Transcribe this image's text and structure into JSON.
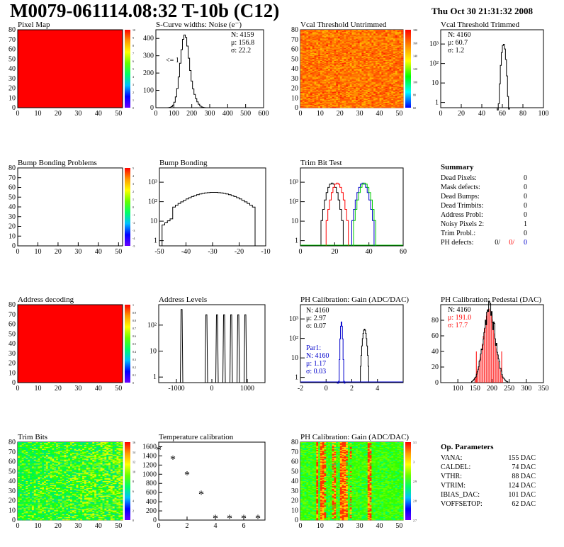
{
  "header": {
    "title": "M0079-061114.08:32 T-10b (C12)",
    "date": "Thu Oct 30 21:31:32 2008"
  },
  "colors": {
    "red": "#ff0000",
    "blue": "#0000cc",
    "green": "#00cc00"
  },
  "chart_data": [
    {
      "id": "pixel_map",
      "type": "heatmap",
      "title": "Pixel Map",
      "xlim": [
        0,
        52
      ],
      "ylim": [
        0,
        80
      ],
      "xticks": [
        "0",
        "10",
        "20",
        "30",
        "40",
        "50"
      ],
      "yticks": [
        "0",
        "10",
        "20",
        "30",
        "40",
        "50",
        "60",
        "70",
        "80"
      ],
      "zticks": [
        "0",
        "1",
        "2",
        "3",
        "4",
        "5",
        "6",
        "7",
        "8",
        "9",
        "10"
      ],
      "fill": "uniform red (maximum)"
    },
    {
      "id": "scurve",
      "type": "histogram",
      "title": "S-Curve widths: Noise (e⁻)",
      "xlim": [
        0,
        600
      ],
      "ylim": [
        0,
        450
      ],
      "xticks": [
        "0",
        "100",
        "200",
        "300",
        "400",
        "500",
        "600"
      ],
      "yticks": [
        "0",
        "100",
        "200",
        "300",
        "400"
      ],
      "stats": {
        "n": "N: 4159",
        "mu": "μ: 156.8",
        "sigma": "σ: 22.2"
      },
      "annotation": "<= 1",
      "peak_x": 156.8,
      "peak_y": 420
    },
    {
      "id": "vcal_untrimmed",
      "type": "heatmap",
      "title": "Vcal Threshold Untrimmed",
      "xlim": [
        0,
        52
      ],
      "ylim": [
        0,
        80
      ],
      "xticks": [
        "0",
        "10",
        "20",
        "30",
        "40",
        "50"
      ],
      "yticks": [
        "0",
        "10",
        "20",
        "30",
        "40",
        "50",
        "60",
        "70",
        "80"
      ],
      "zticks": [
        "60",
        "80",
        "100",
        "120",
        "140",
        "160",
        "180"
      ],
      "fill": "noisy orange/red"
    },
    {
      "id": "vcal_trimmed",
      "type": "histogram",
      "title": "Vcal Threshold Trimmed",
      "ylog": true,
      "xlim": [
        0,
        100
      ],
      "xticks": [
        "0",
        "20",
        "40",
        "60",
        "80",
        "100"
      ],
      "yticks": [
        "1",
        "10",
        "10²",
        "10³"
      ],
      "stats": {
        "n": "N: 4160",
        "mu": "μ: 60.7",
        "sigma": "σ:  1.2"
      },
      "peak_x": 60.7,
      "peak_y": 1000
    },
    {
      "id": "bump_problems",
      "type": "heatmap",
      "title": "Bump Bonding Problems",
      "xlim": [
        0,
        52
      ],
      "ylim": [
        0,
        80
      ],
      "xticks": [
        "0",
        "10",
        "20",
        "30",
        "40",
        "50"
      ],
      "yticks": [
        "0",
        "10",
        "20",
        "30",
        "40",
        "50",
        "60",
        "70",
        "80"
      ],
      "zticks": [
        "-5",
        "-4",
        "-3",
        "-2",
        "-1",
        "0",
        "1",
        "2",
        "3",
        "4",
        "5"
      ],
      "fill": "empty"
    },
    {
      "id": "bump_bonding",
      "type": "histogram",
      "title": "Bump Bonding",
      "ylog": true,
      "xlim": [
        -50,
        -10
      ],
      "xticks": [
        "-50",
        "-40",
        "-30",
        "-20",
        "-10"
      ],
      "yticks": [
        "1",
        "10",
        "10²",
        "10³"
      ],
      "peak_x": -30,
      "peak_y": 300
    },
    {
      "id": "trim_bit_test",
      "type": "histogram",
      "title": "Trim Bit Test",
      "ylog": true,
      "xlim": [
        0,
        60
      ],
      "xticks": [
        "0",
        "20",
        "40",
        "60"
      ],
      "yticks": [
        "1",
        "10",
        "10²",
        "10³"
      ],
      "series": [
        {
          "color": "black",
          "peak_x": 18
        },
        {
          "color": "red",
          "peak_x": 21
        },
        {
          "color": "blue",
          "peak_x": 36
        },
        {
          "color": "green",
          "peak_x": 37
        }
      ]
    },
    {
      "id": "summary",
      "type": "table",
      "title": "Summary",
      "rows": [
        {
          "label": "Dead Pixels:",
          "value": "0"
        },
        {
          "label": "Mask defects:",
          "value": "0"
        },
        {
          "label": "Dead Bumps:",
          "value": "0"
        },
        {
          "label": "Dead Trimbits:",
          "value": "0"
        },
        {
          "label": "Address Probl:",
          "value": "0"
        },
        {
          "label": "Noisy Pixels 2:",
          "value": "1"
        },
        {
          "label": "Trim Probl.:",
          "value": "0"
        }
      ],
      "ph_defects": {
        "label": "PH defects:",
        "v1": "0/",
        "v2": "0/",
        "v3": "0"
      }
    },
    {
      "id": "address_decoding",
      "type": "heatmap",
      "title": "Address decoding",
      "xlim": [
        0,
        52
      ],
      "ylim": [
        0,
        80
      ],
      "xticks": [
        "0",
        "10",
        "20",
        "30",
        "40",
        "50"
      ],
      "yticks": [
        "0",
        "10",
        "20",
        "30",
        "40",
        "50",
        "60",
        "70",
        "80"
      ],
      "zticks": [
        "0",
        "0.1",
        "0.2",
        "0.3",
        "0.4",
        "0.5",
        "0.6",
        "0.7",
        "0.8",
        "0.9",
        "1"
      ],
      "fill": "uniform red (maximum)"
    },
    {
      "id": "address_levels",
      "type": "histogram",
      "title": "Address Levels",
      "ylog": true,
      "xlim": [
        -1500,
        1500
      ],
      "xticks": [
        "-1000",
        "0",
        "1000"
      ],
      "yticks": [
        "1",
        "10",
        "10²"
      ],
      "peaks_x": [
        -850,
        -150,
        150,
        350,
        550,
        750,
        950
      ]
    },
    {
      "id": "ph_gain",
      "type": "histogram",
      "title": "PH Calibration: Gain (ADC/DAC)",
      "ylog": true,
      "xlim": [
        -2,
        6
      ],
      "xticks": [
        "-2",
        "0",
        "2",
        "4"
      ],
      "yticks": [
        "1",
        "10",
        "10²",
        "10³"
      ],
      "stats": {
        "n": "N: 4160",
        "mu": "μ: 2.97",
        "sigma": "σ: 0.07"
      },
      "par1": {
        "title": "Par1:",
        "n": "N: 4160",
        "mu": "μ: 1.17",
        "sigma": "σ: 0.03"
      },
      "peaks": [
        {
          "x": 2.97,
          "color": "black"
        },
        {
          "x": 1.17,
          "color": "blue"
        }
      ]
    },
    {
      "id": "ph_pedestal",
      "type": "histogram",
      "title": "PH Calibration: Pedestal (DAC)",
      "xlim": [
        50,
        350
      ],
      "ylim": [
        0,
        100
      ],
      "xticks": [
        "100",
        "150",
        "200",
        "250",
        "300",
        "350"
      ],
      "yticks": [
        "0",
        "20",
        "40",
        "60",
        "80"
      ],
      "stats": {
        "n": "N: 4160",
        "mu": "μ: 191.0",
        "sigma": "σ: 17.7"
      },
      "peak_x": 191.0,
      "peak_y": 95
    },
    {
      "id": "trim_bits",
      "type": "heatmap",
      "title": "Trim Bits",
      "xlim": [
        0,
        52
      ],
      "ylim": [
        0,
        80
      ],
      "xticks": [
        "0",
        "10",
        "20",
        "30",
        "40",
        "50"
      ],
      "yticks": [
        "0",
        "10",
        "20",
        "30",
        "40",
        "50",
        "60",
        "70",
        "80"
      ],
      "zticks": [
        "0",
        "2",
        "4",
        "6",
        "8",
        "10",
        "12",
        "14",
        "16"
      ],
      "fill": "noisy green/yellow"
    },
    {
      "id": "temp_calib",
      "type": "scatter",
      "title": "Temperature calibration",
      "xlim": [
        0,
        7.5
      ],
      "ylim": [
        0,
        1700
      ],
      "xticks": [
        "0",
        "2",
        "4",
        "6"
      ],
      "yticks": [
        "0",
        "200",
        "400",
        "600",
        "800",
        "1000",
        "1200",
        "1400",
        "1600"
      ],
      "x": [
        0,
        1,
        2,
        3,
        4,
        5,
        6,
        7
      ],
      "y": [
        1520,
        1320,
        980,
        560,
        30,
        30,
        30,
        30
      ]
    },
    {
      "id": "ph_gain_map",
      "type": "heatmap",
      "title": "PH Calibration: Gain (ADC/DAC)",
      "xlim": [
        0,
        52
      ],
      "ylim": [
        0,
        80
      ],
      "xticks": [
        "0",
        "10",
        "20",
        "30",
        "40",
        "50"
      ],
      "yticks": [
        "0",
        "10",
        "20",
        "30",
        "40",
        "50",
        "60",
        "70",
        "80"
      ],
      "zticks": [
        "2.7",
        "2.8",
        "2.9",
        "3",
        "3.1"
      ],
      "fill": "noisy green with red/yellow column stripes"
    },
    {
      "id": "op_params",
      "type": "table",
      "title": "Op. Parameters",
      "rows": [
        {
          "label": "VANA:",
          "value": "155 DAC"
        },
        {
          "label": "CALDEL:",
          "value": "74 DAC"
        },
        {
          "label": "VTHR:",
          "value": "88 DAC"
        },
        {
          "label": "VTRIM:",
          "value": "124 DAC"
        },
        {
          "label": "IBIAS_DAC:",
          "value": "101 DAC"
        },
        {
          "label": "VOFFSETOP:",
          "value": "62 DAC"
        }
      ]
    }
  ]
}
